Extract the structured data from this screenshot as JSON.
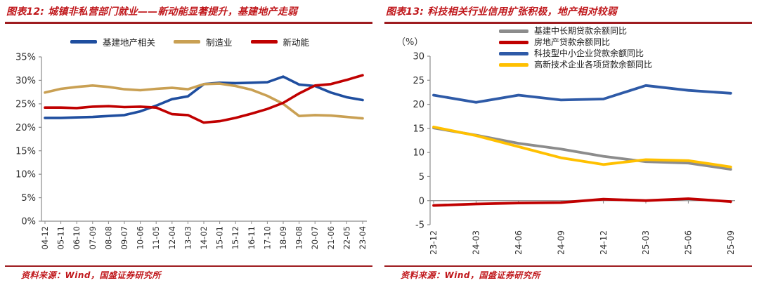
{
  "page": {
    "background": "#ffffff",
    "accent_red": "#c0181c",
    "rule_red": "#9e1c20",
    "axis_color": "#8c8c8c",
    "tick_label_color": "#2e2e2e"
  },
  "panels": [
    {
      "title": "图表12: 城镇非私营部门就业——新动能显著提升，基建地产走弱",
      "source": "资料来源：Wind，国盛证券研究所"
    },
    {
      "title": "图表13: 科技相关行业信用扩张积极，地产相对较弱",
      "source": "资料来源：Wind，国盛证券研究所"
    }
  ],
  "chart_data": [
    {
      "type": "line",
      "title": "城镇非私营部门就业——新动能显著提升，基建地产走弱",
      "categories": [
        "04-12",
        "05-11",
        "06-10",
        "07-09",
        "08-08",
        "09-07",
        "10-06",
        "11-05",
        "12-04",
        "13-03",
        "14-02",
        "15-01",
        "15-12",
        "16-11",
        "17-10",
        "18-09",
        "19-08",
        "20-07",
        "21-06",
        "22-05",
        "23-04"
      ],
      "series": [
        {
          "name": "基建地产相关",
          "color": "#1f4e9f",
          "values": [
            22.0,
            22.0,
            22.1,
            22.2,
            22.4,
            22.6,
            23.4,
            24.6,
            26.0,
            26.6,
            29.2,
            29.5,
            29.4,
            29.5,
            29.6,
            30.8,
            29.1,
            28.8,
            27.4,
            26.4,
            25.8
          ]
        },
        {
          "name": "制造业",
          "color": "#c9a053",
          "values": [
            27.4,
            28.2,
            28.6,
            28.9,
            28.6,
            28.1,
            27.9,
            28.2,
            28.4,
            28.1,
            29.2,
            29.3,
            28.8,
            28.0,
            26.7,
            25.0,
            22.4,
            22.6,
            22.5,
            22.2,
            21.9
          ]
        },
        {
          "name": "新动能",
          "color": "#c00000",
          "values": [
            24.2,
            24.2,
            24.1,
            24.4,
            24.5,
            24.3,
            24.4,
            24.2,
            22.8,
            22.6,
            21.0,
            21.3,
            22.0,
            22.9,
            23.9,
            25.2,
            27.2,
            28.9,
            29.2,
            30.1,
            31.1
          ]
        }
      ],
      "ylim": [
        0,
        35
      ],
      "ytick_step": 5,
      "ytick_format": "percent",
      "axis_cross_y": 0,
      "grid": false,
      "legend_position": "top-center"
    },
    {
      "type": "line",
      "title": "科技相关行业信用扩张积极，地产相对较弱",
      "unit_label": "（%）",
      "categories": [
        "23-12",
        "24-03",
        "24-06",
        "24-09",
        "24-12",
        "25-03",
        "25-06",
        "25-09"
      ],
      "series": [
        {
          "name": "基建中长期贷款余额同比",
          "color": "#8c8c8c",
          "values": [
            15.1,
            13.6,
            11.9,
            10.7,
            9.2,
            8.1,
            7.8,
            6.5
          ]
        },
        {
          "name": "房地产贷款余额同比",
          "color": "#c00000",
          "values": [
            -1.0,
            -0.7,
            -0.5,
            -0.4,
            0.3,
            0.0,
            0.4,
            -0.2
          ]
        },
        {
          "name": "科技型中小企业贷款余额同比",
          "color": "#2e5aa7",
          "values": [
            21.9,
            20.4,
            21.9,
            20.9,
            21.1,
            23.9,
            22.9,
            22.3
          ]
        },
        {
          "name": "高新技术企业各项贷款余额同比",
          "color": "#ffc000",
          "values": [
            15.3,
            13.5,
            11.2,
            8.9,
            7.5,
            8.5,
            8.3,
            7.0
          ]
        }
      ],
      "ylim": [
        -5,
        30
      ],
      "ytick_step": 5,
      "ytick_format": "number",
      "axis_cross_y": 0,
      "grid": false,
      "legend_position": "top-right"
    }
  ]
}
